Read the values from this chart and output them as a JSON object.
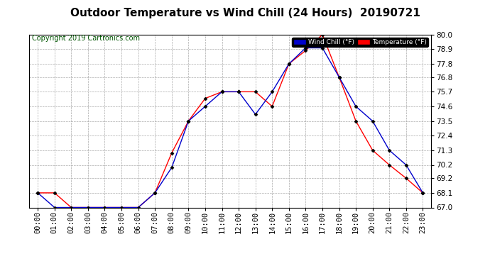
{
  "title": "Outdoor Temperature vs Wind Chill (24 Hours)  20190721",
  "copyright": "Copyright 2019 Cartronics.com",
  "hours": [
    "00:00",
    "01:00",
    "02:00",
    "03:00",
    "04:00",
    "05:00",
    "06:00",
    "07:00",
    "08:00",
    "09:00",
    "10:00",
    "11:00",
    "12:00",
    "13:00",
    "14:00",
    "15:00",
    "16:00",
    "17:00",
    "18:00",
    "19:00",
    "20:00",
    "21:00",
    "22:00",
    "23:00"
  ],
  "temperature": [
    68.1,
    68.1,
    67.0,
    67.0,
    67.0,
    67.0,
    67.0,
    68.1,
    71.1,
    73.5,
    75.2,
    75.7,
    75.7,
    75.7,
    74.6,
    77.8,
    78.8,
    80.0,
    76.8,
    73.5,
    71.3,
    70.2,
    69.2,
    68.1
  ],
  "wind_chill": [
    68.1,
    67.0,
    67.0,
    67.0,
    67.0,
    67.0,
    67.0,
    68.1,
    70.0,
    73.5,
    74.6,
    75.7,
    75.7,
    74.0,
    75.7,
    77.8,
    79.0,
    79.0,
    76.8,
    74.6,
    73.5,
    71.3,
    70.2,
    68.1
  ],
  "ylim": [
    67.0,
    80.0
  ],
  "yticks": [
    67.0,
    68.1,
    69.2,
    70.2,
    71.3,
    72.4,
    73.5,
    74.6,
    75.7,
    76.8,
    77.8,
    78.9,
    80.0
  ],
  "temp_color": "#ff0000",
  "wind_chill_color": "#0000cc",
  "bg_color": "#ffffff",
  "plot_bg_color": "#ffffff",
  "grid_color": "#aaaaaa",
  "title_fontsize": 11,
  "copyright_fontsize": 7,
  "tick_fontsize": 7.5,
  "legend_wind_chill_label": "Wind Chill (°F)",
  "legend_temp_label": "Temperature (°F)"
}
